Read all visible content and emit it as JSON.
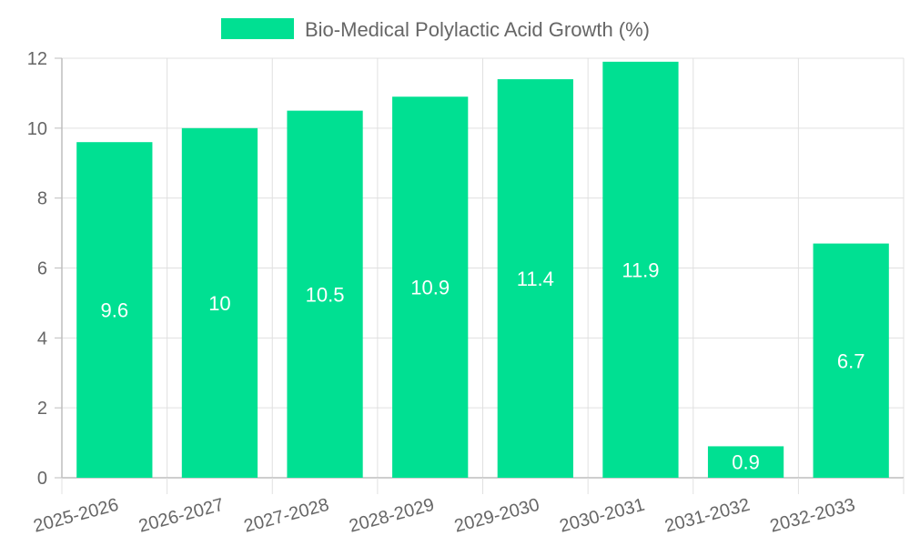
{
  "chart_data": {
    "type": "bar",
    "categories": [
      "2025-2026",
      "2026-2027",
      "2027-2028",
      "2028-2029",
      "2029-2030",
      "2030-2031",
      "2031-2032",
      "2032-2033"
    ],
    "series": [
      {
        "name": "Bio-Medical Polylactic Acid Growth (%)",
        "values": [
          9.6,
          10,
          10.5,
          10.9,
          11.4,
          11.9,
          0.9,
          6.7
        ]
      }
    ],
    "ylim": [
      0,
      12
    ],
    "yticks": [
      0,
      2,
      4,
      6,
      8,
      10,
      12
    ],
    "xlabel": "",
    "ylabel": "",
    "grid": true,
    "legend_position": "top",
    "data_labels": [
      "9.6",
      "10",
      "10.5",
      "10.9",
      "11.4",
      "11.9",
      "0.9",
      "6.7"
    ],
    "colors": {
      "bar": "#00e092",
      "grid": "#e0e0e0",
      "axis": "#bdbdbd",
      "text": "#666666",
      "label": "#ffffff"
    }
  }
}
